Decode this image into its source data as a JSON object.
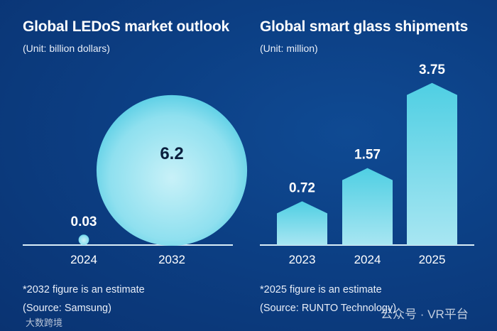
{
  "chart_data": [
    {
      "type": "bubble",
      "title": "Global LEDoS market outlook",
      "subtitle": "(Unit: billion dollars)",
      "categories": [
        "2024",
        "2032"
      ],
      "values": [
        0.03,
        6.2
      ],
      "value_labels": [
        "0.03",
        "6.2"
      ],
      "note": "*2032 figure is an estimate",
      "source": "(Source: Samsung)"
    },
    {
      "type": "bar",
      "title": "Global smart glass shipments",
      "subtitle": "(Unit: million)",
      "categories": [
        "2023",
        "2024",
        "2025"
      ],
      "values": [
        0.72,
        1.57,
        3.75
      ],
      "value_labels": [
        "0.72",
        "1.57",
        "3.75"
      ],
      "note": "*2025 figure is an estimate",
      "source": "(Source: RUNTO Technology)"
    }
  ],
  "watermarks": {
    "left": "大数跨境",
    "right": "公众号 · VR平台"
  },
  "colors": {
    "bar_top": "#4fcfe3",
    "bar_bottom": "#a8e6f2",
    "axis": "#dbeef8"
  }
}
